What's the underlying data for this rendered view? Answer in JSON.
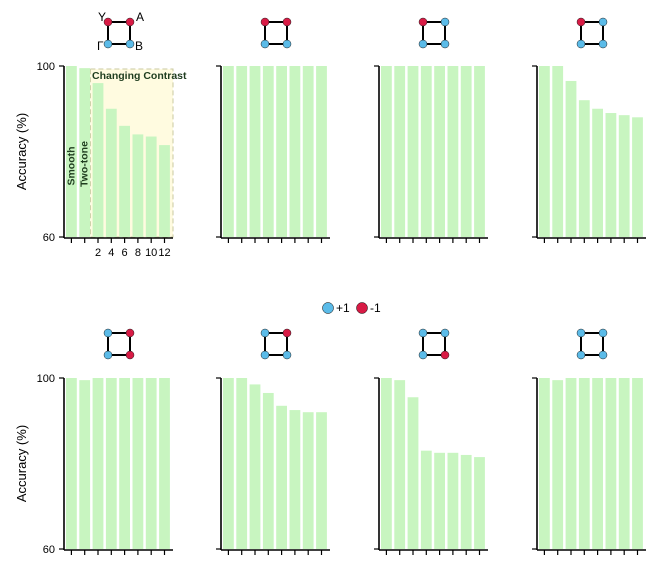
{
  "legend": {
    "pos_label": "+1",
    "neg_label": "-1",
    "pos_color": "#5bbbe8",
    "neg_color": "#d81b45"
  },
  "icon_corner_labels": {
    "tl": "Y",
    "tr": "A",
    "br": "B",
    "bl": "Γ"
  },
  "annotations": {
    "changing_contrast": "Changing Contrast",
    "smooth": "Smooth",
    "two_tone": "Two-tone"
  },
  "bar_color": "#c8f5c0",
  "chart_data": [
    {
      "type": "bar",
      "ylabel": "Accuracy (%)",
      "ylim": [
        60,
        100
      ],
      "yticks": [
        "60",
        "100"
      ],
      "categories": [
        "Smooth",
        "Two-tone",
        "2",
        "4",
        "6",
        "8",
        "10",
        "12"
      ],
      "xticks": [
        "",
        "",
        "2",
        "4",
        "6",
        "8",
        "10",
        "12"
      ],
      "corners": [
        "neg",
        "neg",
        "pos",
        "pos"
      ],
      "values": [
        100,
        99.5,
        96,
        90,
        86,
        84,
        83.5,
        81.5
      ]
    },
    {
      "type": "bar",
      "ylabel": "",
      "ylim": [
        60,
        100
      ],
      "corners": [
        "neg",
        "neg",
        "pos",
        "pos"
      ],
      "values": [
        100,
        100,
        100,
        100,
        100,
        100,
        100,
        100
      ]
    },
    {
      "type": "bar",
      "ylabel": "",
      "ylim": [
        60,
        100
      ],
      "corners": [
        "neg",
        "pos",
        "pos",
        "pos"
      ],
      "values": [
        100,
        100,
        100,
        100,
        100,
        100,
        100,
        100
      ]
    },
    {
      "type": "bar",
      "ylabel": "",
      "ylim": [
        60,
        100
      ],
      "corners": [
        "neg",
        "pos",
        "pos",
        "pos"
      ],
      "values": [
        100,
        100,
        96.5,
        92,
        90,
        89,
        88.5,
        88
      ]
    },
    {
      "type": "bar",
      "ylabel": "Accuracy (%)",
      "ylim": [
        60,
        100
      ],
      "yticks": [
        "60",
        "100"
      ],
      "corners": [
        "pos",
        "neg",
        "neg",
        "pos"
      ],
      "values": [
        100,
        99.5,
        100,
        100,
        100,
        100,
        100,
        100
      ]
    },
    {
      "type": "bar",
      "ylabel": "",
      "ylim": [
        60,
        100
      ],
      "corners": [
        "pos",
        "neg",
        "pos",
        "pos"
      ],
      "values": [
        100,
        100,
        98.5,
        96.5,
        93.5,
        92.5,
        92,
        92
      ]
    },
    {
      "type": "bar",
      "ylabel": "",
      "ylim": [
        60,
        100
      ],
      "corners": [
        "pos",
        "pos",
        "neg",
        "pos"
      ],
      "values": [
        100,
        99.5,
        95.5,
        83,
        82.5,
        82.5,
        82,
        81.5
      ]
    },
    {
      "type": "bar",
      "ylabel": "",
      "ylim": [
        60,
        100
      ],
      "corners": [
        "pos",
        "pos",
        "pos",
        "pos"
      ],
      "values": [
        100,
        99.5,
        100,
        100,
        100,
        100,
        100,
        100
      ]
    }
  ]
}
